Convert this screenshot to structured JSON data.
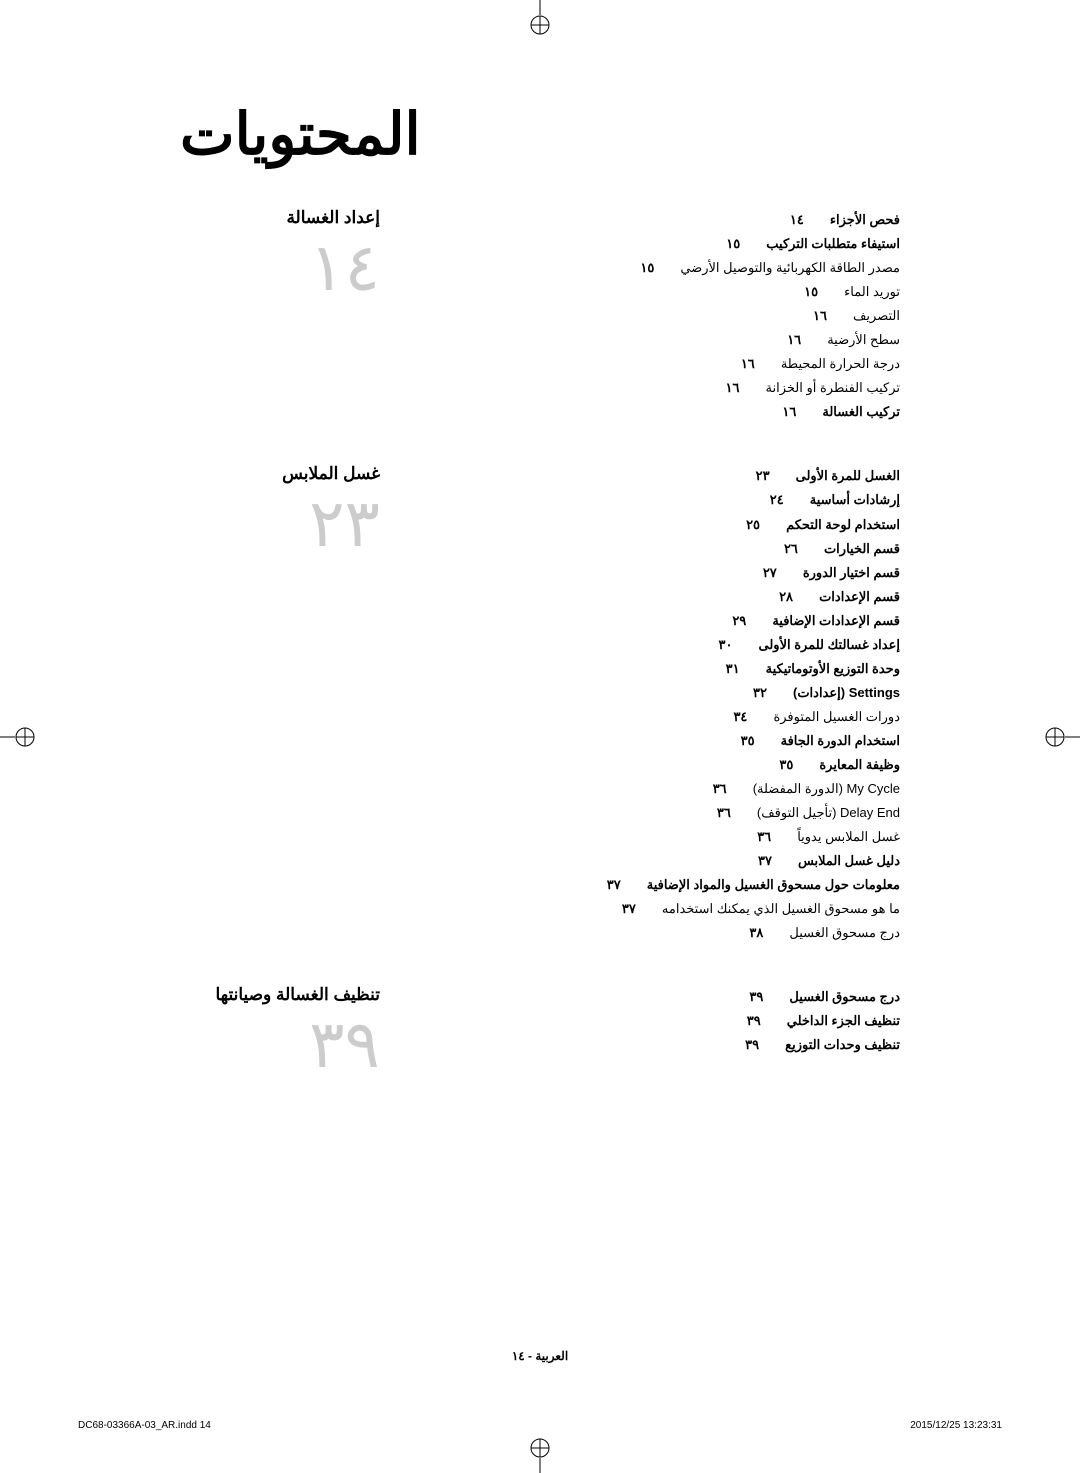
{
  "title": "المحتويات",
  "sections": [
    {
      "heading": "إعداد الغسالة",
      "big_num": "١٤",
      "entries": [
        {
          "n": "١٤",
          "t": "فحص الأجزاء",
          "bold": true
        },
        {
          "n": "١٥",
          "t": "استيفاء متطلبات التركيب",
          "bold": true
        },
        {
          "n": "١٥",
          "t": "مصدر الطاقة الكهربائية والتوصيل الأرضي",
          "bold": false
        },
        {
          "n": "١٥",
          "t": "توريد الماء",
          "bold": false
        },
        {
          "n": "١٦",
          "t": "التصريف",
          "bold": false
        },
        {
          "n": "١٦",
          "t": "سطح الأرضية",
          "bold": false
        },
        {
          "n": "١٦",
          "t": "درجة الحرارة المحيطة",
          "bold": false
        },
        {
          "n": "١٦",
          "t": "تركيب الفنطرة أو الخزانة",
          "bold": false
        },
        {
          "n": "١٦",
          "t": "تركيب الغسالة",
          "bold": true
        }
      ]
    },
    {
      "heading": "غسل الملابس",
      "big_num": "٢٣",
      "entries": [
        {
          "n": "٢٣",
          "t": "الغسل للمرة الأولى",
          "bold": true
        },
        {
          "n": "٢٤",
          "t": "إرشادات أساسية",
          "bold": true
        },
        {
          "n": "٢٥",
          "t": "استخدام لوحة التحكم",
          "bold": true
        },
        {
          "n": "٢٦",
          "t": "قسم الخيارات",
          "bold": true
        },
        {
          "n": "٢٧",
          "t": "قسم اختيار الدورة",
          "bold": true
        },
        {
          "n": "٢٨",
          "t": "قسم        الإعدادات",
          "bold": true
        },
        {
          "n": "٢٩",
          "t": "قسم الإعدادات        الإضافية",
          "bold": true
        },
        {
          "n": "٣٠",
          "t": "إعداد غسالتك للمرة الأولى",
          "bold": true
        },
        {
          "n": "٣١",
          "t": "وحدة التوزيع الأوتوماتيكية",
          "bold": true
        },
        {
          "n": "٣٢",
          "t": "Settings (إعدادات)",
          "bold": true
        },
        {
          "n": "٣٤",
          "t": "دورات الغسيل المتوفرة",
          "bold": false
        },
        {
          "n": "٣٥",
          "t": "استخدام الدورة الجافة",
          "bold": true
        },
        {
          "n": "٣٥",
          "t": "وظيفة المعايرة",
          "bold": true
        },
        {
          "n": "٣٦",
          "t": "My Cycle (الدورة المفضلة)",
          "bold": false
        },
        {
          "n": "٣٦",
          "t": "Delay End (تأجيل التوقف)",
          "bold": false
        },
        {
          "n": "٣٦",
          "t": "غسل الملابس يدوياً",
          "bold": false
        },
        {
          "n": "٣٧",
          "t": "دليل غسل الملابس",
          "bold": true
        },
        {
          "n": "٣٧",
          "t": "معلومات حول مسحوق الغسيل والمواد الإضافية",
          "bold": true
        },
        {
          "n": "٣٧",
          "t": "ما هو مسحوق الغسيل الذي يمكنك استخدامه",
          "bold": false
        },
        {
          "n": "٣٨",
          "t": "درج مسحوق الغسيل",
          "bold": false
        }
      ]
    },
    {
      "heading": "تنظيف الغسالة وصيانتها",
      "big_num": "٣٩",
      "entries": [
        {
          "n": "٣٩",
          "t": "درج مسحوق الغسيل",
          "bold": true
        },
        {
          "n": "٣٩",
          "t": "تنظيف الجزء الداخلي",
          "bold": true
        },
        {
          "n": "٣٩",
          "t": "تنظيف وحدات التوزيع",
          "bold": true
        }
      ]
    }
  ],
  "footer": "العربية - ١٤",
  "indd_left": "DC68-03366A-03_AR.indd   14",
  "indd_right": "2015/12/25   13:23:31"
}
